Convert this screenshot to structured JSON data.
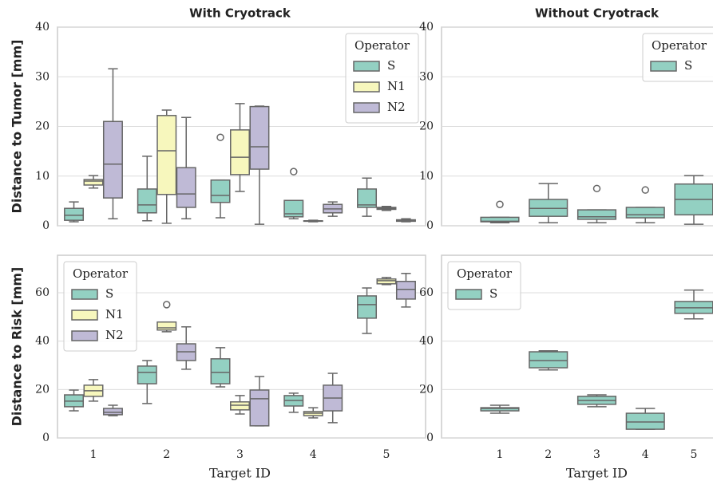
{
  "chart_data": [
    {
      "type": "box",
      "title": "With Cryotrack",
      "ylabel": "Distance to Tumor [mm]",
      "ylim": [
        0,
        40
      ],
      "yticks": [
        0,
        10,
        20,
        30,
        40
      ],
      "grid": true,
      "legend_title": "Operator",
      "legend_loc": "upper right",
      "series": [
        {
          "name": "S",
          "color": "#93d0c2",
          "boxes": [
            {
              "min": 0.8,
              "q1": 1.1,
              "median": 2.1,
              "q3": 3.5,
              "max": 4.8
            },
            {
              "min": 1.0,
              "q1": 2.6,
              "median": 4.2,
              "q3": 7.4,
              "max": 14.0
            },
            {
              "min": 1.6,
              "q1": 4.7,
              "median": 6.1,
              "q3": 9.2,
              "max": 9.2,
              "outliers": [
                17.8
              ]
            },
            {
              "min": 1.4,
              "q1": 1.8,
              "median": 2.4,
              "q3": 5.1,
              "max": 5.1,
              "outliers": [
                10.9
              ]
            },
            {
              "min": 1.9,
              "q1": 3.7,
              "median": 4.2,
              "q3": 7.4,
              "max": 9.6
            }
          ]
        },
        {
          "name": "N1",
          "color": "#f7f7bd",
          "boxes": [
            {
              "min": 7.6,
              "q1": 8.2,
              "median": 9.0,
              "q3": 9.3,
              "max": 10.1
            },
            {
              "min": 0.5,
              "q1": 6.3,
              "median": 15.1,
              "q3": 22.2,
              "max": 23.3
            },
            {
              "min": 6.9,
              "q1": 10.3,
              "median": 13.8,
              "q3": 19.3,
              "max": 24.6
            },
            {
              "min": 0.8,
              "q1": 0.9,
              "median": 1.0,
              "q3": 1.0,
              "max": 1.1
            },
            {
              "min": 3.1,
              "q1": 3.3,
              "median": 3.5,
              "q3": 3.7,
              "max": 3.9
            }
          ]
        },
        {
          "name": "N2",
          "color": "#bfbad6",
          "boxes": [
            {
              "min": 1.4,
              "q1": 5.6,
              "median": 12.4,
              "q3": 21.0,
              "max": 31.6
            },
            {
              "min": 1.4,
              "q1": 3.7,
              "median": 6.4,
              "q3": 11.7,
              "max": 21.8
            },
            {
              "min": 0.3,
              "q1": 11.4,
              "median": 15.9,
              "q3": 24.0,
              "max": 24.1
            },
            {
              "min": 1.9,
              "q1": 2.6,
              "median": 3.4,
              "q3": 4.3,
              "max": 4.8
            },
            {
              "min": 0.8,
              "q1": 0.9,
              "median": 1.1,
              "q3": 1.2,
              "max": 1.4
            }
          ]
        }
      ]
    },
    {
      "type": "box",
      "title": "Without Cryotrack",
      "ylim": [
        0,
        40
      ],
      "yticks": [
        0,
        10,
        20,
        30,
        40
      ],
      "grid": true,
      "legend_title": "Operator",
      "legend_loc": "upper right",
      "series": [
        {
          "name": "S",
          "color": "#93d0c2",
          "boxes": [
            {
              "min": 0.6,
              "q1": 0.8,
              "median": 0.9,
              "q3": 1.7,
              "max": 1.7,
              "outliers": [
                4.3
              ]
            },
            {
              "min": 0.6,
              "q1": 1.9,
              "median": 3.5,
              "q3": 5.3,
              "max": 8.5
            },
            {
              "min": 0.6,
              "q1": 1.3,
              "median": 1.8,
              "q3": 3.2,
              "max": 3.2,
              "outliers": [
                7.5
              ]
            },
            {
              "min": 0.6,
              "q1": 1.6,
              "median": 2.2,
              "q3": 3.7,
              "max": 3.7,
              "outliers": [
                7.2
              ]
            },
            {
              "min": 0.3,
              "q1": 2.2,
              "median": 5.3,
              "q3": 8.4,
              "max": 10.1
            }
          ]
        }
      ]
    },
    {
      "type": "box",
      "ylabel": "Distance to Risk [mm]",
      "xlabel": "Target ID",
      "categories": [
        "1",
        "2",
        "3",
        "4",
        "5"
      ],
      "ylim": [
        0,
        75.5
      ],
      "yticks": [
        0,
        20,
        40,
        60
      ],
      "grid": true,
      "legend_title": "Operator",
      "legend_loc": "upper left",
      "series": [
        {
          "name": "S",
          "color": "#93d0c2",
          "boxes": [
            {
              "min": 11.2,
              "q1": 12.9,
              "median": 15.2,
              "q3": 17.8,
              "max": 19.8
            },
            {
              "min": 14.2,
              "q1": 22.4,
              "median": 27.1,
              "q3": 29.7,
              "max": 32.0
            },
            {
              "min": 21.1,
              "q1": 22.4,
              "median": 27.1,
              "q3": 32.7,
              "max": 37.3
            },
            {
              "min": 10.6,
              "q1": 13.2,
              "median": 15.5,
              "q3": 17.5,
              "max": 18.5
            },
            {
              "min": 43.2,
              "q1": 49.5,
              "median": 55.1,
              "q3": 58.7,
              "max": 62.0
            }
          ]
        },
        {
          "name": "N1",
          "color": "#f7f7bd",
          "boxes": [
            {
              "min": 15.2,
              "q1": 17.2,
              "median": 19.5,
              "q3": 21.8,
              "max": 24.1
            },
            {
              "min": 43.9,
              "q1": 44.6,
              "median": 45.5,
              "q3": 47.9,
              "max": 47.9,
              "outliers": [
                55.1
              ]
            },
            {
              "min": 9.9,
              "q1": 11.6,
              "median": 13.5,
              "q3": 14.9,
              "max": 17.5
            },
            {
              "min": 8.3,
              "q1": 9.2,
              "median": 10.2,
              "q3": 10.9,
              "max": 12.5
            },
            {
              "min": 63.4,
              "q1": 63.7,
              "median": 65.0,
              "q3": 65.7,
              "max": 66.3
            }
          ]
        },
        {
          "name": "N2",
          "color": "#bfbad6",
          "boxes": [
            {
              "min": 9.2,
              "q1": 9.6,
              "median": 10.6,
              "q3": 12.2,
              "max": 13.5
            },
            {
              "min": 28.4,
              "q1": 32.0,
              "median": 35.6,
              "q3": 38.9,
              "max": 45.9
            },
            {
              "min": 5.0,
              "q1": 5.0,
              "median": 16.2,
              "q3": 19.8,
              "max": 25.4
            },
            {
              "min": 6.3,
              "q1": 11.2,
              "median": 16.5,
              "q3": 21.8,
              "max": 26.7
            },
            {
              "min": 54.1,
              "q1": 57.4,
              "median": 61.4,
              "q3": 64.7,
              "max": 68.0
            }
          ]
        }
      ]
    },
    {
      "type": "box",
      "xlabel": "Target ID",
      "categories": [
        "1",
        "2",
        "3",
        "4",
        "5"
      ],
      "ylim": [
        0,
        75.5
      ],
      "yticks": [
        0,
        20,
        40,
        60
      ],
      "grid": true,
      "legend_title": "Operator",
      "legend_loc": "upper left",
      "series": [
        {
          "name": "S",
          "color": "#93d0c2",
          "boxes": [
            {
              "min": 10.2,
              "q1": 11.2,
              "median": 12.2,
              "q3": 12.5,
              "max": 13.5
            },
            {
              "min": 28.1,
              "q1": 29.0,
              "median": 32.0,
              "q3": 35.6,
              "max": 36.0
            },
            {
              "min": 12.9,
              "q1": 13.9,
              "median": 15.5,
              "q3": 17.2,
              "max": 17.8
            },
            {
              "min": 3.6,
              "q1": 3.6,
              "median": 6.6,
              "q3": 10.2,
              "max": 12.2
            },
            {
              "min": 49.2,
              "q1": 51.5,
              "median": 53.8,
              "q3": 56.4,
              "max": 61.1
            }
          ]
        }
      ]
    }
  ]
}
